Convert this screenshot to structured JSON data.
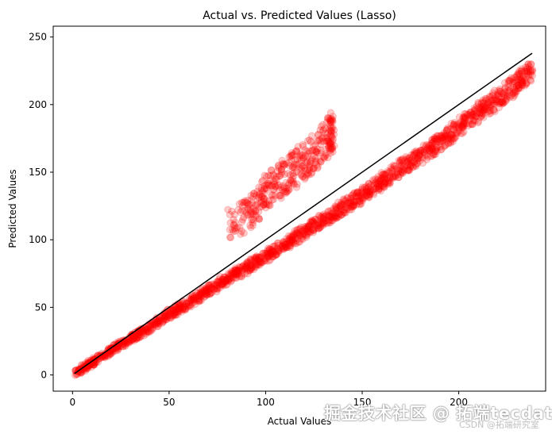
{
  "chart_data": {
    "type": "scatter",
    "title": "Actual vs. Predicted Values (Lasso)",
    "xlabel": "Actual Values",
    "ylabel": "Predicted Values",
    "xlim": [
      -10,
      245
    ],
    "ylim": [
      -12,
      258
    ],
    "xticks": [
      0,
      50,
      100,
      150,
      200
    ],
    "yticks": [
      0,
      50,
      100,
      150,
      200,
      250
    ],
    "grid": false,
    "point_color": "#ff0000",
    "point_alpha": 0.2,
    "reference_line": {
      "x": [
        1,
        238
      ],
      "y": [
        1,
        238
      ],
      "color": "#000000"
    },
    "series": [
      {
        "main_trend": [
          [
            2,
            2
          ],
          [
            10,
            9
          ],
          [
            20,
            18
          ],
          [
            30,
            27
          ],
          [
            40,
            35
          ],
          [
            50,
            45
          ],
          [
            60,
            53
          ],
          [
            70,
            62
          ],
          [
            80,
            71
          ],
          [
            90,
            79
          ],
          [
            100,
            88
          ],
          [
            110,
            97
          ],
          [
            120,
            106
          ],
          [
            130,
            115
          ],
          [
            140,
            124
          ],
          [
            150,
            133
          ],
          [
            160,
            143
          ],
          [
            170,
            153
          ],
          [
            180,
            162
          ],
          [
            190,
            172
          ],
          [
            200,
            183
          ],
          [
            210,
            194
          ],
          [
            220,
            204
          ],
          [
            230,
            215
          ],
          [
            238,
            225
          ]
        ],
        "upper_cluster": [
          [
            80,
            110
          ],
          [
            90,
            118
          ],
          [
            95,
            125
          ],
          [
            100,
            135
          ],
          [
            105,
            140
          ],
          [
            110,
            148
          ],
          [
            115,
            152
          ],
          [
            120,
            158
          ],
          [
            125,
            165
          ],
          [
            130,
            172
          ],
          [
            135,
            180
          ],
          [
            132,
            178
          ]
        ]
      }
    ]
  },
  "watermark": {
    "main": "掘金技术社区 @ 拓端tecdat",
    "sub": "CSDN @拓端研究室"
  }
}
